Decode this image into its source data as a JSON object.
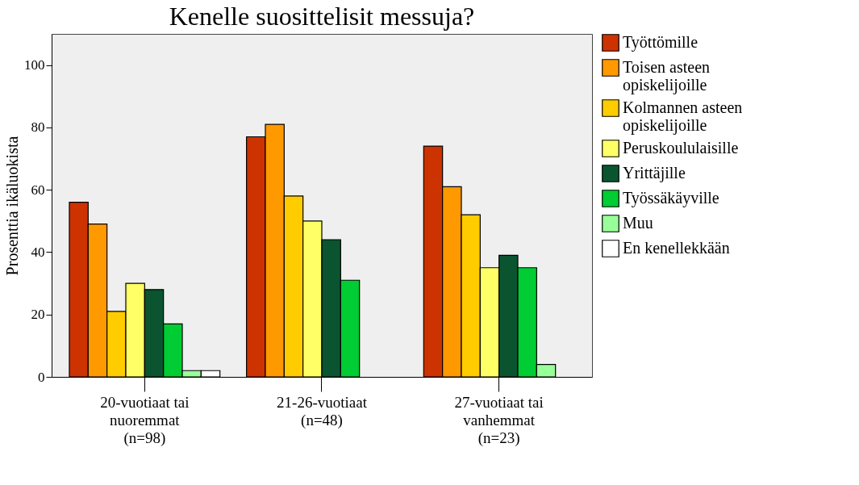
{
  "chart_data": {
    "type": "bar",
    "title": "Kenelle suosittelisit messuja?",
    "ylabel": "Prosenttia ikäluokista",
    "categories": [
      "20-vuotiaat tai\nnuoremmat\n(n=98)",
      "21-26-vuotiaat\n(n=48)",
      "27-vuotiaat tai\nvanhemmat\n(n=23)"
    ],
    "series": [
      {
        "name": "Työttömille",
        "color": "#cc3300",
        "values": [
          56,
          77,
          74
        ]
      },
      {
        "name": "Toisen asteen opiskelijoille",
        "color": "#ff9900",
        "values": [
          49,
          81,
          61
        ]
      },
      {
        "name": "Kolmannen asteen opiskelijoille",
        "color": "#ffcc00",
        "values": [
          21,
          58,
          52
        ]
      },
      {
        "name": "Peruskoululaisille",
        "color": "#ffff66",
        "values": [
          30,
          50,
          35
        ]
      },
      {
        "name": "Yrittäjille",
        "color": "#0b5430",
        "values": [
          28,
          44,
          39
        ]
      },
      {
        "name": "Työssäkäyville",
        "color": "#00cc33",
        "values": [
          17,
          31,
          35
        ]
      },
      {
        "name": "Muu",
        "color": "#99ff99",
        "values": [
          2,
          0,
          4
        ]
      },
      {
        "name": "En kenellekkään",
        "color": "#ffffff",
        "values": [
          2,
          0,
          0
        ]
      }
    ],
    "ylim": [
      0,
      110
    ],
    "yticks": [
      0,
      20,
      40,
      60,
      80,
      100
    ],
    "grid": false,
    "legend": "right"
  }
}
